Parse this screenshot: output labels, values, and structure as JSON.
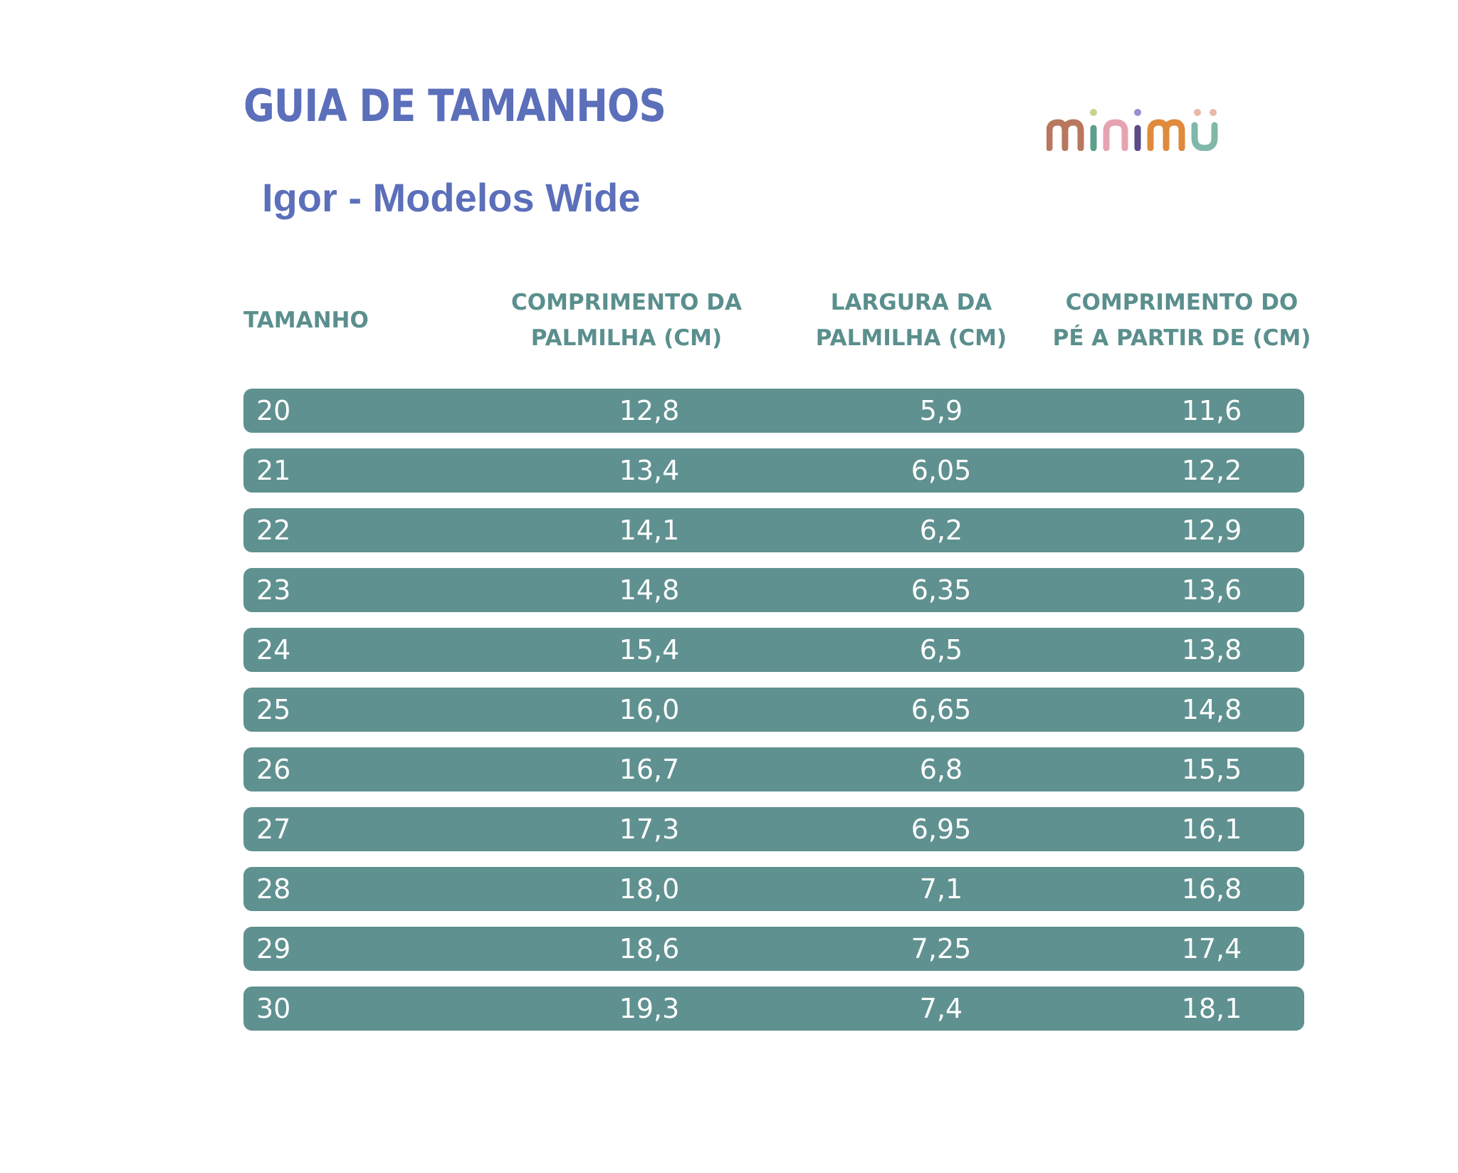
{
  "title": "GUIA DE TAMANHOS",
  "subtitle": "Igor - Modelos Wide",
  "brand": {
    "name": "minimu",
    "letter_colors": [
      "#b7785e",
      "#c9a98f",
      "#5e9e8c",
      "#e6a3b0",
      "#9a8fd0",
      "#e08a3c",
      "#7fb8a8"
    ]
  },
  "colors": {
    "title": "#5b6fba",
    "header": "#5a8f8d",
    "row_bg": "#5f9190",
    "row_text": "#ffffff"
  },
  "table": {
    "headers": [
      "TAMANHO",
      "COMPRIMENTO DA\nPALMILHA (CM)",
      "LARGURA DA\nPALMILHA (CM)",
      "COMPRIMENTO DO\nPÉ A PARTIR DE (CM)"
    ],
    "rows": [
      [
        "20",
        "12,8",
        "5,9",
        "11,6"
      ],
      [
        "21",
        "13,4",
        "6,05",
        "12,2"
      ],
      [
        "22",
        "14,1",
        "6,2",
        "12,9"
      ],
      [
        "23",
        "14,8",
        "6,35",
        "13,6"
      ],
      [
        "24",
        "15,4",
        "6,5",
        "13,8"
      ],
      [
        "25",
        "16,0",
        "6,65",
        "14,8"
      ],
      [
        "26",
        "16,7",
        "6,8",
        "15,5"
      ],
      [
        "27",
        "17,3",
        "6,95",
        "16,1"
      ],
      [
        "28",
        "18,0",
        "7,1",
        "16,8"
      ],
      [
        "29",
        "18,6",
        "7,25",
        "17,4"
      ],
      [
        "30",
        "19,3",
        "7,4",
        "18,1"
      ]
    ]
  }
}
